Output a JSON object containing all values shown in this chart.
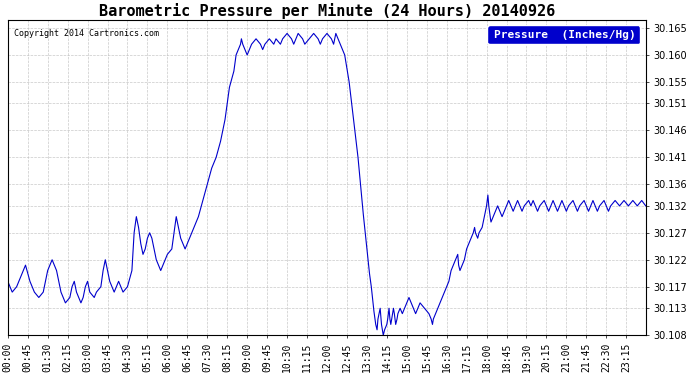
{
  "title": "Barometric Pressure per Minute (24 Hours) 20140926",
  "copyright": "Copyright 2014 Cartronics.com",
  "legend_label": "Pressure  (Inches/Hg)",
  "ymin": 30.108,
  "ymax": 30.1665,
  "yticks": [
    30.165,
    30.16,
    30.155,
    30.151,
    30.146,
    30.141,
    30.136,
    30.132,
    30.127,
    30.122,
    30.117,
    30.113,
    30.108
  ],
  "line_color": "#0000cc",
  "background_color": "#ffffff",
  "grid_color": "#bbbbbb",
  "title_fontsize": 11,
  "tick_fontsize": 7,
  "legend_fontsize": 8,
  "xtick_labels": [
    "00:00",
    "00:45",
    "01:30",
    "02:15",
    "03:00",
    "03:45",
    "04:30",
    "05:15",
    "06:00",
    "06:45",
    "07:30",
    "08:15",
    "09:00",
    "09:45",
    "10:30",
    "11:15",
    "12:00",
    "12:45",
    "13:30",
    "14:15",
    "15:00",
    "15:45",
    "16:30",
    "17:15",
    "18:00",
    "18:45",
    "19:30",
    "20:15",
    "21:00",
    "21:45",
    "22:30",
    "23:15"
  ],
  "control_points": [
    [
      0,
      30.118
    ],
    [
      10,
      30.116
    ],
    [
      20,
      30.117
    ],
    [
      30,
      30.119
    ],
    [
      40,
      30.121
    ],
    [
      50,
      30.118
    ],
    [
      60,
      30.116
    ],
    [
      70,
      30.115
    ],
    [
      80,
      30.116
    ],
    [
      90,
      30.12
    ],
    [
      100,
      30.122
    ],
    [
      110,
      30.12
    ],
    [
      115,
      30.118
    ],
    [
      120,
      30.116
    ],
    [
      130,
      30.114
    ],
    [
      140,
      30.115
    ],
    [
      145,
      30.117
    ],
    [
      150,
      30.118
    ],
    [
      155,
      30.116
    ],
    [
      160,
      30.115
    ],
    [
      165,
      30.114
    ],
    [
      170,
      30.115
    ],
    [
      175,
      30.117
    ],
    [
      180,
      30.118
    ],
    [
      185,
      30.116
    ],
    [
      195,
      30.115
    ],
    [
      200,
      30.116
    ],
    [
      210,
      30.117
    ],
    [
      215,
      30.12
    ],
    [
      220,
      30.122
    ],
    [
      225,
      30.12
    ],
    [
      230,
      30.118
    ],
    [
      235,
      30.117
    ],
    [
      240,
      30.116
    ],
    [
      245,
      30.117
    ],
    [
      250,
      30.118
    ],
    [
      255,
      30.117
    ],
    [
      260,
      30.116
    ],
    [
      270,
      30.117
    ],
    [
      280,
      30.12
    ],
    [
      285,
      30.127
    ],
    [
      290,
      30.13
    ],
    [
      295,
      30.128
    ],
    [
      300,
      30.125
    ],
    [
      305,
      30.123
    ],
    [
      310,
      30.124
    ],
    [
      315,
      30.126
    ],
    [
      320,
      30.127
    ],
    [
      325,
      30.126
    ],
    [
      330,
      30.124
    ],
    [
      335,
      30.122
    ],
    [
      340,
      30.121
    ],
    [
      345,
      30.12
    ],
    [
      350,
      30.121
    ],
    [
      355,
      30.122
    ],
    [
      360,
      30.123
    ],
    [
      370,
      30.124
    ],
    [
      375,
      30.127
    ],
    [
      380,
      30.13
    ],
    [
      385,
      30.128
    ],
    [
      390,
      30.126
    ],
    [
      395,
      30.125
    ],
    [
      400,
      30.124
    ],
    [
      405,
      30.125
    ],
    [
      410,
      30.126
    ],
    [
      420,
      30.128
    ],
    [
      430,
      30.13
    ],
    [
      440,
      30.133
    ],
    [
      450,
      30.136
    ],
    [
      460,
      30.139
    ],
    [
      470,
      30.141
    ],
    [
      480,
      30.144
    ],
    [
      490,
      30.148
    ],
    [
      495,
      30.151
    ],
    [
      500,
      30.154
    ],
    [
      510,
      30.157
    ],
    [
      515,
      30.16
    ],
    [
      520,
      30.161
    ],
    [
      525,
      30.162
    ],
    [
      527,
      30.163
    ],
    [
      530,
      30.162
    ],
    [
      535,
      30.161
    ],
    [
      540,
      30.16
    ],
    [
      545,
      30.161
    ],
    [
      550,
      30.162
    ],
    [
      560,
      30.163
    ],
    [
      570,
      30.162
    ],
    [
      575,
      30.161
    ],
    [
      580,
      30.162
    ],
    [
      590,
      30.163
    ],
    [
      600,
      30.162
    ],
    [
      605,
      30.163
    ],
    [
      615,
      30.162
    ],
    [
      620,
      30.163
    ],
    [
      630,
      30.164
    ],
    [
      640,
      30.163
    ],
    [
      645,
      30.162
    ],
    [
      650,
      30.163
    ],
    [
      655,
      30.164
    ],
    [
      665,
      30.163
    ],
    [
      670,
      30.162
    ],
    [
      680,
      30.163
    ],
    [
      690,
      30.164
    ],
    [
      700,
      30.163
    ],
    [
      705,
      30.162
    ],
    [
      710,
      30.163
    ],
    [
      720,
      30.164
    ],
    [
      730,
      30.163
    ],
    [
      735,
      30.162
    ],
    [
      740,
      30.164
    ],
    [
      745,
      30.163
    ],
    [
      750,
      30.162
    ],
    [
      760,
      30.16
    ],
    [
      770,
      30.155
    ],
    [
      780,
      30.148
    ],
    [
      790,
      30.141
    ],
    [
      800,
      30.132
    ],
    [
      810,
      30.124
    ],
    [
      815,
      30.12
    ],
    [
      820,
      30.117
    ],
    [
      825,
      30.113
    ],
    [
      830,
      30.11
    ],
    [
      833,
      30.109
    ],
    [
      835,
      30.111
    ],
    [
      840,
      30.113
    ],
    [
      843,
      30.11
    ],
    [
      845,
      30.109
    ],
    [
      847,
      30.108
    ],
    [
      850,
      30.109
    ],
    [
      855,
      30.11
    ],
    [
      857,
      30.111
    ],
    [
      860,
      30.113
    ],
    [
      862,
      30.111
    ],
    [
      864,
      30.11
    ],
    [
      866,
      30.111
    ],
    [
      870,
      30.113
    ],
    [
      872,
      30.112
    ],
    [
      875,
      30.11
    ],
    [
      878,
      30.111
    ],
    [
      880,
      30.112
    ],
    [
      885,
      30.113
    ],
    [
      890,
      30.112
    ],
    [
      895,
      30.113
    ],
    [
      900,
      30.114
    ],
    [
      905,
      30.115
    ],
    [
      910,
      30.114
    ],
    [
      915,
      30.113
    ],
    [
      920,
      30.112
    ],
    [
      925,
      30.113
    ],
    [
      930,
      30.114
    ],
    [
      940,
      30.113
    ],
    [
      950,
      30.112
    ],
    [
      955,
      30.111
    ],
    [
      958,
      30.11
    ],
    [
      960,
      30.111
    ],
    [
      965,
      30.112
    ],
    [
      970,
      30.113
    ],
    [
      975,
      30.114
    ],
    [
      980,
      30.115
    ],
    [
      985,
      30.116
    ],
    [
      990,
      30.117
    ],
    [
      995,
      30.118
    ],
    [
      1000,
      30.12
    ],
    [
      1005,
      30.121
    ],
    [
      1010,
      30.122
    ],
    [
      1015,
      30.123
    ],
    [
      1017,
      30.121
    ],
    [
      1020,
      30.12
    ],
    [
      1025,
      30.121
    ],
    [
      1030,
      30.122
    ],
    [
      1035,
      30.124
    ],
    [
      1040,
      30.125
    ],
    [
      1045,
      30.126
    ],
    [
      1050,
      30.127
    ],
    [
      1053,
      30.128
    ],
    [
      1055,
      30.127
    ],
    [
      1060,
      30.126
    ],
    [
      1063,
      30.127
    ],
    [
      1070,
      30.128
    ],
    [
      1075,
      30.13
    ],
    [
      1080,
      30.132
    ],
    [
      1083,
      30.134
    ],
    [
      1085,
      30.132
    ],
    [
      1088,
      30.13
    ],
    [
      1090,
      30.129
    ],
    [
      1095,
      30.13
    ],
    [
      1100,
      30.131
    ],
    [
      1105,
      30.132
    ],
    [
      1110,
      30.131
    ],
    [
      1115,
      30.13
    ],
    [
      1120,
      30.131
    ],
    [
      1125,
      30.132
    ],
    [
      1130,
      30.133
    ],
    [
      1135,
      30.132
    ],
    [
      1140,
      30.131
    ],
    [
      1145,
      30.132
    ],
    [
      1150,
      30.133
    ],
    [
      1155,
      30.132
    ],
    [
      1160,
      30.131
    ],
    [
      1165,
      30.132
    ],
    [
      1175,
      30.133
    ],
    [
      1180,
      30.132
    ],
    [
      1185,
      30.133
    ],
    [
      1190,
      30.132
    ],
    [
      1195,
      30.131
    ],
    [
      1200,
      30.132
    ],
    [
      1210,
      30.133
    ],
    [
      1215,
      30.132
    ],
    [
      1220,
      30.131
    ],
    [
      1225,
      30.132
    ],
    [
      1230,
      30.133
    ],
    [
      1235,
      30.132
    ],
    [
      1240,
      30.131
    ],
    [
      1245,
      30.132
    ],
    [
      1250,
      30.133
    ],
    [
      1255,
      30.132
    ],
    [
      1260,
      30.131
    ],
    [
      1265,
      30.132
    ],
    [
      1275,
      30.133
    ],
    [
      1280,
      30.132
    ],
    [
      1285,
      30.131
    ],
    [
      1290,
      30.132
    ],
    [
      1300,
      30.133
    ],
    [
      1305,
      30.132
    ],
    [
      1310,
      30.131
    ],
    [
      1315,
      30.132
    ],
    [
      1320,
      30.133
    ],
    [
      1325,
      30.132
    ],
    [
      1330,
      30.131
    ],
    [
      1335,
      30.132
    ],
    [
      1345,
      30.133
    ],
    [
      1350,
      30.132
    ],
    [
      1355,
      30.131
    ],
    [
      1360,
      30.132
    ],
    [
      1370,
      30.133
    ],
    [
      1380,
      30.132
    ],
    [
      1390,
      30.133
    ],
    [
      1400,
      30.132
    ],
    [
      1410,
      30.133
    ],
    [
      1420,
      30.132
    ],
    [
      1430,
      30.133
    ],
    [
      1439,
      30.132
    ]
  ]
}
